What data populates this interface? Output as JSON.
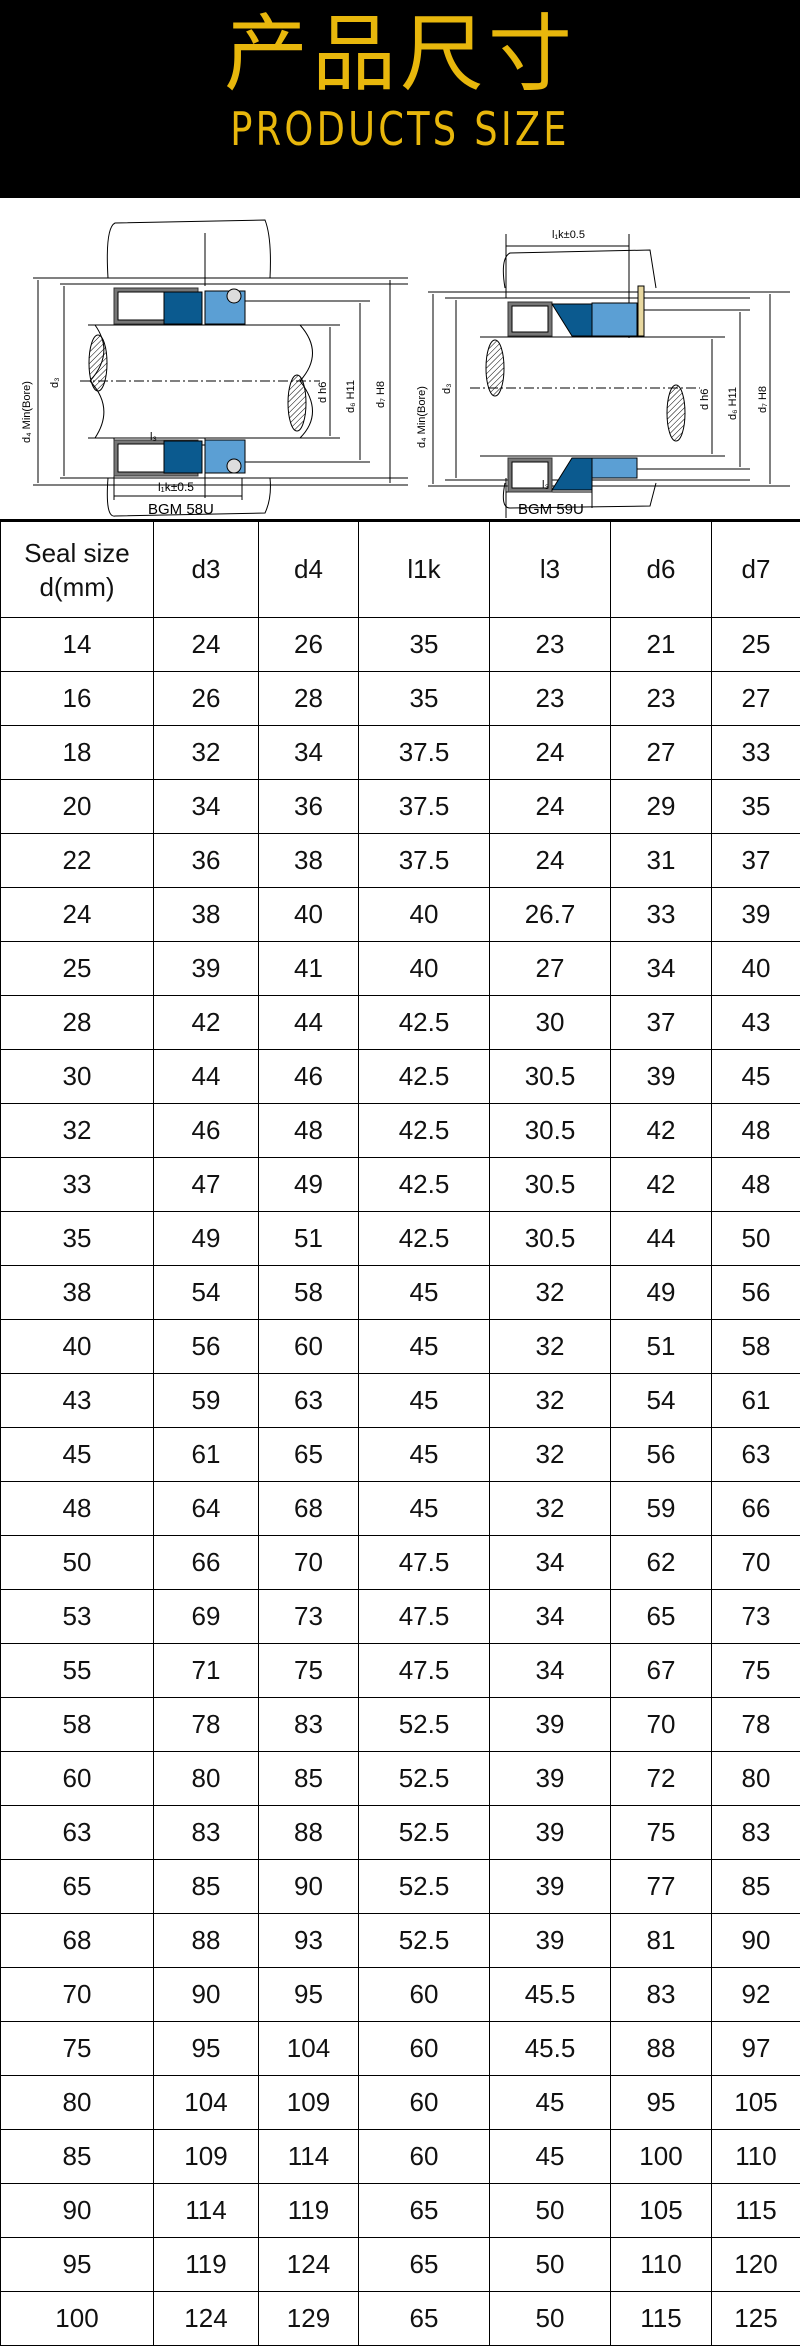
{
  "header": {
    "title_cn": "产品尺寸",
    "title_en": "PRODUCTS SIZE"
  },
  "diagram": {
    "left": {
      "model": "BGM 58U",
      "labels": {
        "d4": "d₄ Min(Bore)",
        "d3": "d₃",
        "dh6": "d h6",
        "d6": "d₆ H11",
        "d7": "d₇ H8",
        "l3": "l₃",
        "l1k": "l₁k±0.5"
      }
    },
    "right": {
      "model": "BGM 59U",
      "labels": {
        "d4": "d₄ Min(Bore)",
        "d3": "d₃",
        "dh6": "d h6",
        "d6": "d₆ H11",
        "d7": "d₇ H8",
        "l3": "l₃",
        "l1k": "l₁k±0.5"
      }
    },
    "colors": {
      "seal_dark": "#0b5a8f",
      "seal_light": "#5b9fd4",
      "spring_case": "#555555"
    }
  },
  "table": {
    "headers": [
      "Seal size d(mm)",
      "d3",
      "d4",
      "l1k",
      "l3",
      "d6",
      "d7"
    ],
    "rows": [
      [
        "14",
        "24",
        "26",
        "35",
        "23",
        "21",
        "25"
      ],
      [
        "16",
        "26",
        "28",
        "35",
        "23",
        "23",
        "27"
      ],
      [
        "18",
        "32",
        "34",
        "37.5",
        "24",
        "27",
        "33"
      ],
      [
        "20",
        "34",
        "36",
        "37.5",
        "24",
        "29",
        "35"
      ],
      [
        "22",
        "36",
        "38",
        "37.5",
        "24",
        "31",
        "37"
      ],
      [
        "24",
        "38",
        "40",
        "40",
        "26.7",
        "33",
        "39"
      ],
      [
        "25",
        "39",
        "41",
        "40",
        "27",
        "34",
        "40"
      ],
      [
        "28",
        "42",
        "44",
        "42.5",
        "30",
        "37",
        "43"
      ],
      [
        "30",
        "44",
        "46",
        "42.5",
        "30.5",
        "39",
        "45"
      ],
      [
        "32",
        "46",
        "48",
        "42.5",
        "30.5",
        "42",
        "48"
      ],
      [
        "33",
        "47",
        "49",
        "42.5",
        "30.5",
        "42",
        "48"
      ],
      [
        "35",
        "49",
        "51",
        "42.5",
        "30.5",
        "44",
        "50"
      ],
      [
        "38",
        "54",
        "58",
        "45",
        "32",
        "49",
        "56"
      ],
      [
        "40",
        "56",
        "60",
        "45",
        "32",
        "51",
        "58"
      ],
      [
        "43",
        "59",
        "63",
        "45",
        "32",
        "54",
        "61"
      ],
      [
        "45",
        "61",
        "65",
        "45",
        "32",
        "56",
        "63"
      ],
      [
        "48",
        "64",
        "68",
        "45",
        "32",
        "59",
        "66"
      ],
      [
        "50",
        "66",
        "70",
        "47.5",
        "34",
        "62",
        "70"
      ],
      [
        "53",
        "69",
        "73",
        "47.5",
        "34",
        "65",
        "73"
      ],
      [
        "55",
        "71",
        "75",
        "47.5",
        "34",
        "67",
        "75"
      ],
      [
        "58",
        "78",
        "83",
        "52.5",
        "39",
        "70",
        "78"
      ],
      [
        "60",
        "80",
        "85",
        "52.5",
        "39",
        "72",
        "80"
      ],
      [
        "63",
        "83",
        "88",
        "52.5",
        "39",
        "75",
        "83"
      ],
      [
        "65",
        "85",
        "90",
        "52.5",
        "39",
        "77",
        "85"
      ],
      [
        "68",
        "88",
        "93",
        "52.5",
        "39",
        "81",
        "90"
      ],
      [
        "70",
        "90",
        "95",
        "60",
        "45.5",
        "83",
        "92"
      ],
      [
        "75",
        "95",
        "104",
        "60",
        "45.5",
        "88",
        "97"
      ],
      [
        "80",
        "104",
        "109",
        "60",
        "45",
        "95",
        "105"
      ],
      [
        "85",
        "109",
        "114",
        "60",
        "45",
        "100",
        "110"
      ],
      [
        "90",
        "114",
        "119",
        "65",
        "50",
        "105",
        "115"
      ],
      [
        "95",
        "119",
        "124",
        "65",
        "50",
        "110",
        "120"
      ],
      [
        "100",
        "124",
        "129",
        "65",
        "50",
        "115",
        "125"
      ]
    ]
  }
}
